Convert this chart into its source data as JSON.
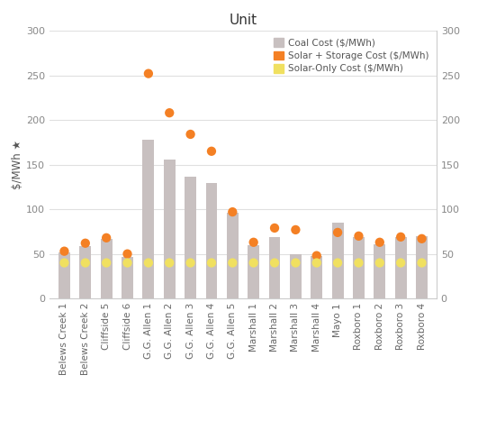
{
  "categories": [
    "Belews Creek 1",
    "Belews Creek 2",
    "Cliffside 5",
    "Cliffside 6",
    "G.G. Allen 1",
    "G.G. Allen 2",
    "G.G. Allen 3",
    "G.G. Allen 4",
    "G.G. Allen 5",
    "Marshall 1",
    "Marshall 2",
    "Marshall 3",
    "Marshall 4",
    "Mayo 1",
    "Roxboro 1",
    "Roxboro 2",
    "Roxboro 3",
    "Roxboro 4"
  ],
  "coal_cost": [
    52,
    59,
    67,
    47,
    178,
    156,
    136,
    129,
    96,
    60,
    69,
    50,
    48,
    85,
    69,
    61,
    69,
    70
  ],
  "solar_storage_cost": [
    53,
    62,
    68,
    50,
    252,
    208,
    184,
    165,
    97,
    63,
    79,
    77,
    48,
    74,
    70,
    63,
    69,
    67
  ],
  "solar_only_cost": [
    40,
    40,
    40,
    40,
    40,
    40,
    40,
    40,
    40,
    40,
    40,
    40,
    40,
    40,
    40,
    40,
    40,
    40
  ],
  "bar_color": "#c8c0c0",
  "solar_storage_color": "#f48024",
  "solar_only_color": "#f0e060",
  "title": "Unit",
  "ylabel": "$/MWh ★",
  "ylim": [
    0,
    300
  ],
  "yticks": [
    0,
    50,
    100,
    150,
    200,
    250,
    300
  ],
  "title_fontsize": 11,
  "dot_size": 55,
  "bar_width": 0.55,
  "legend_labels": [
    "Coal Cost ($/MWh)",
    "Solar + Storage Cost ($/MWh)",
    "Solar-Only Cost ($/MWh)"
  ]
}
